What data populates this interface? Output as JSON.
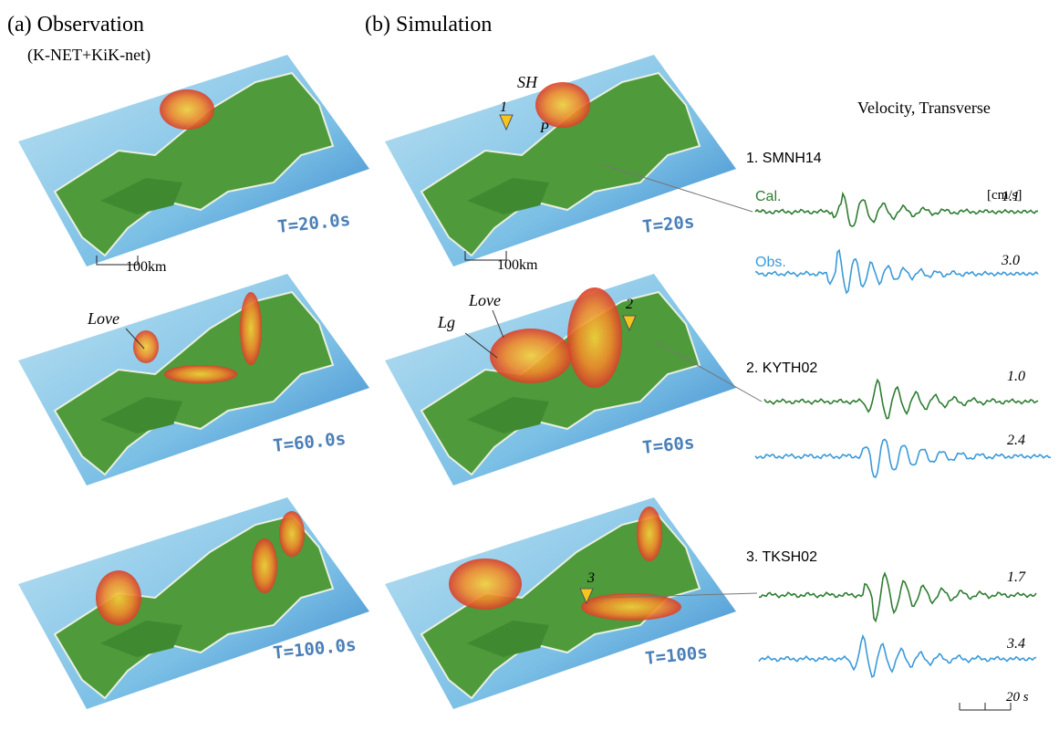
{
  "header": {
    "observation_title": "(a) Observation",
    "observation_subtitle": "(K-NET+KiK-net)",
    "simulation_title": "(b) Simulation",
    "waveform_title": "Velocity, Transverse"
  },
  "observation_maps": [
    {
      "time": "T=20.0s"
    },
    {
      "time": "T=60.0s",
      "annotations": [
        "Love"
      ]
    },
    {
      "time": "T=100.0s"
    }
  ],
  "simulation_maps": [
    {
      "time": "T=20s",
      "annotations": [
        "SH",
        "P",
        "1"
      ]
    },
    {
      "time": "T=60s",
      "annotations": [
        "Lg",
        "Love",
        "2"
      ]
    },
    {
      "time": "T=100s",
      "annotations": [
        "3"
      ]
    }
  ],
  "scale_bars": {
    "map": "100km",
    "time": "20 s"
  },
  "waveforms": {
    "unit": "[cm/s]",
    "cal_label": "Cal.",
    "obs_label": "Obs.",
    "stations": [
      {
        "name": "1. SMNH14",
        "cal_peak": "1.1",
        "obs_peak": "3.0"
      },
      {
        "name": "2. KYTH02",
        "cal_peak": "1.0",
        "obs_peak": "2.4"
      },
      {
        "name": "3. TKSH02",
        "cal_peak": "1.7",
        "obs_peak": "3.4"
      }
    ]
  }
}
